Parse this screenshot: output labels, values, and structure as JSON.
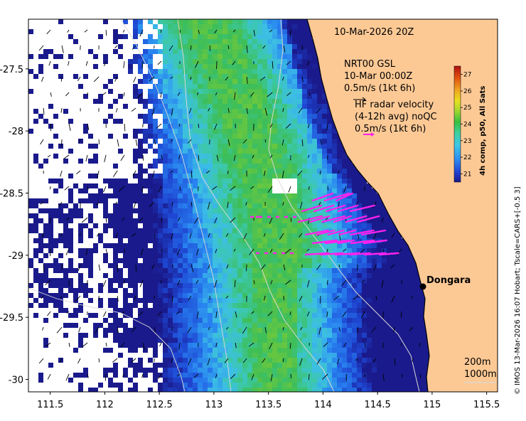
{
  "map": {
    "date_title": "10-Mar-2026 20Z",
    "lon_ticks": [
      "111.5",
      "112",
      "112.5",
      "113",
      "113.5",
      "114",
      "114.5",
      "115",
      "115.5"
    ],
    "lat_ticks": [
      "-27.5",
      "-28",
      "-28.5",
      "-29",
      "-29.5",
      "-30"
    ],
    "lon_range": [
      111.3,
      115.6
    ],
    "lat_range": [
      -30.1,
      -27.1
    ],
    "model_legend": {
      "line1": "NRT00 GSL",
      "line2": "10-Mar 00:00Z",
      "scale": "0.5m/s (1kt 6h)"
    },
    "radar_legend": {
      "line1": "HF radar velocity",
      "line2": "(4-12h avg) noQC",
      "scale": "0.5m/s (1kt 6h)",
      "color": "#ff22ee"
    },
    "place": {
      "name": "Dongara",
      "lon": 114.93,
      "lat": -29.27
    },
    "isobaths": [
      "200m",
      "1000m"
    ],
    "colorbar": {
      "title": "4h comp, p50, All Sats",
      "ticks": [
        "21",
        "22",
        "23",
        "24",
        "25",
        "26",
        "27"
      ],
      "min": 20.5,
      "max": 27.5
    },
    "credit": "© IMOS 13-Mar-2026 16:07 Hobart; Tscale=CARS+[-0.5 3]",
    "colors": {
      "land": "#fcc995",
      "coast": "#000000",
      "isobath": "#d8d8d8",
      "radar_vector": "#ff22ee"
    }
  }
}
